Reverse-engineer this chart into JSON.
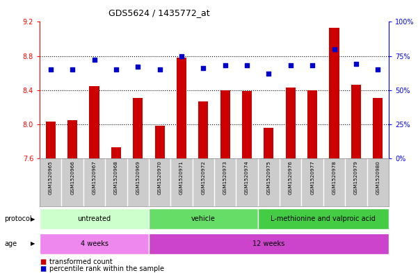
{
  "title": "GDS5624 / 1435772_at",
  "samples": [
    "GSM1520965",
    "GSM1520966",
    "GSM1520967",
    "GSM1520968",
    "GSM1520969",
    "GSM1520970",
    "GSM1520971",
    "GSM1520972",
    "GSM1520973",
    "GSM1520974",
    "GSM1520975",
    "GSM1520976",
    "GSM1520977",
    "GSM1520978",
    "GSM1520979",
    "GSM1520980"
  ],
  "bar_values": [
    8.03,
    8.05,
    8.45,
    7.73,
    8.31,
    7.98,
    8.78,
    8.27,
    8.4,
    8.39,
    7.96,
    8.43,
    8.4,
    9.13,
    8.46,
    8.31
  ],
  "dot_percentile": [
    65,
    65,
    72,
    65,
    67,
    65,
    75,
    66,
    68,
    68,
    62,
    68,
    68,
    80,
    69,
    65
  ],
  "ylim_left": [
    7.6,
    9.2
  ],
  "ylim_right": [
    0,
    100
  ],
  "yticks_left": [
    7.6,
    8.0,
    8.4,
    8.8,
    9.2
  ],
  "yticks_right": [
    0,
    25,
    50,
    75,
    100
  ],
  "bar_color": "#cc0000",
  "dot_color": "#0000cc",
  "grid_color": "#000000",
  "bg_color": "#ffffff",
  "plot_bg": "#ffffff",
  "sample_bg": "#cccccc",
  "protocol_groups": [
    {
      "label": "untreated",
      "start": 0,
      "end": 5,
      "color": "#ccffcc"
    },
    {
      "label": "vehicle",
      "start": 5,
      "end": 10,
      "color": "#66dd66"
    },
    {
      "label": "L-methionine and valproic acid",
      "start": 10,
      "end": 16,
      "color": "#44cc44"
    }
  ],
  "age_groups": [
    {
      "label": "4 weeks",
      "start": 0,
      "end": 5,
      "color": "#ee88ee"
    },
    {
      "label": "12 weeks",
      "start": 5,
      "end": 16,
      "color": "#cc44cc"
    }
  ],
  "legend_bar_label": "transformed count",
  "legend_dot_label": "percentile rank within the sample",
  "protocol_label": "protocol",
  "age_label": "age"
}
